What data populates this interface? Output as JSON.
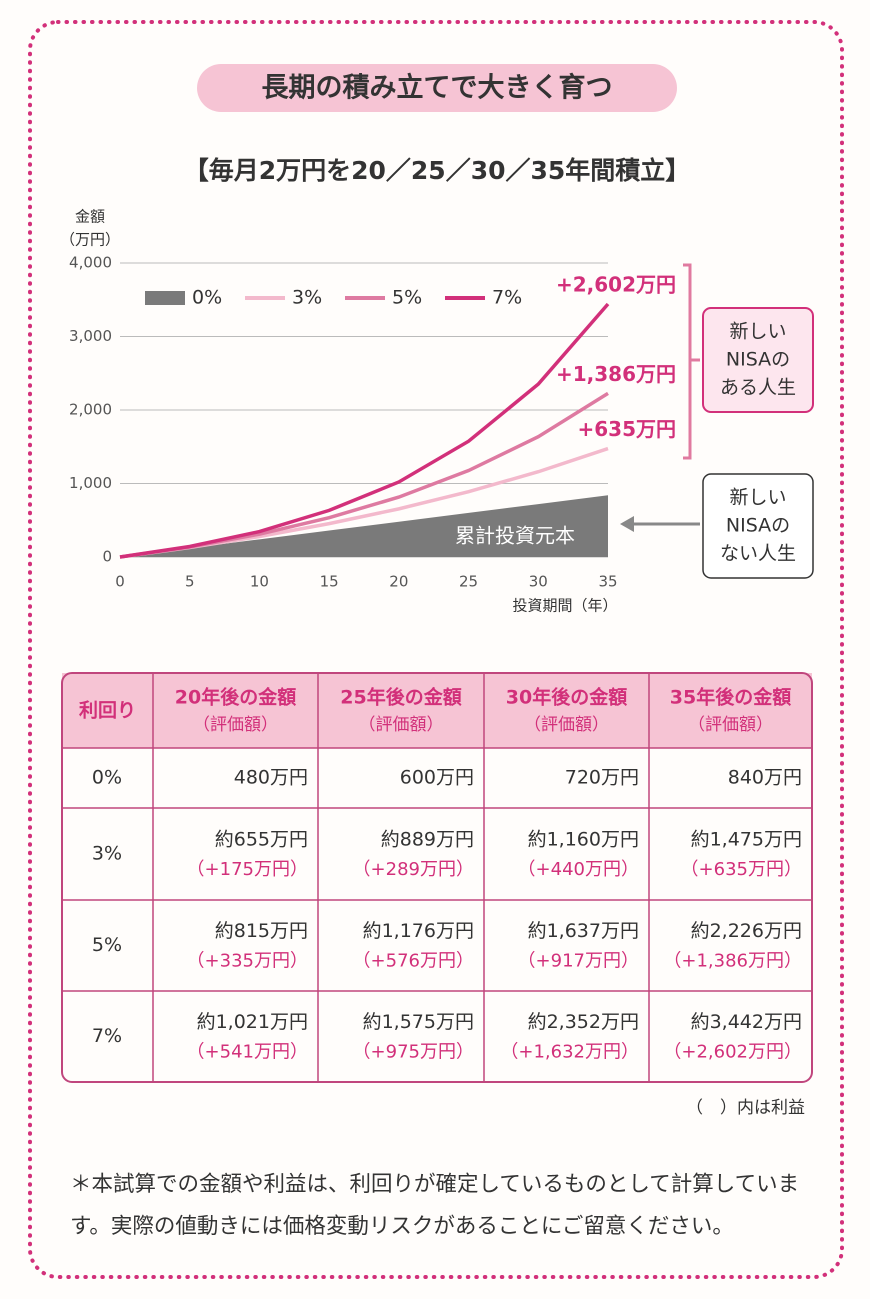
{
  "header": {
    "title": "長期の積み立てで大きく育つ"
  },
  "chart_data": {
    "type": "line",
    "title": "【毎月2万円を20／25／30／35年間積立】",
    "xlabel": "投資期間（年）",
    "ylabel": [
      "金額",
      "（万円）"
    ],
    "x": [
      0,
      5,
      10,
      15,
      20,
      25,
      30,
      35
    ],
    "xlim": [
      0,
      35
    ],
    "xticks": [
      0,
      5,
      10,
      15,
      20,
      25,
      30,
      35
    ],
    "ylim": [
      0,
      4000
    ],
    "yticks": [
      0,
      {
        "value": 1000,
        "label": "1,000"
      },
      {
        "value": 2000,
        "label": "2,000"
      },
      {
        "value": 3000,
        "label": "3,000"
      },
      {
        "value": 4000,
        "label": "4,000"
      }
    ],
    "grid": true,
    "legend": "top-left",
    "series": [
      {
        "name": "0%",
        "color": "#7a7a7a",
        "area": true,
        "values": [
          0,
          120,
          240,
          360,
          480,
          600,
          720,
          840
        ]
      },
      {
        "name": "3%",
        "color": "#f3b9cc",
        "values": [
          0,
          129,
          279,
          454,
          655,
          889,
          1160,
          1475
        ]
      },
      {
        "name": "5%",
        "color": "#de7aa1",
        "values": [
          0,
          136,
          311,
          535,
          815,
          1176,
          1637,
          2226
        ]
      },
      {
        "name": "7%",
        "color": "#d2307a",
        "values": [
          0,
          143,
          346,
          634,
          1021,
          1575,
          2352,
          3442
        ]
      }
    ],
    "area_label": "累計投資元本",
    "annotations": [
      "+635万円",
      "+1,386万円",
      "+2,602万円"
    ],
    "groups": [
      {
        "label": [
          "新しい",
          "NISAの",
          "ある人生"
        ]
      },
      {
        "label": [
          "新しい",
          "NISAの",
          "ない人生"
        ]
      }
    ]
  },
  "table": {
    "header": [
      "利回り",
      [
        "20年後の金額",
        "（評価額）"
      ],
      [
        "25年後の金額",
        "（評価額）"
      ],
      [
        "30年後の金額",
        "（評価額）"
      ],
      [
        "35年後の金額",
        "（評価額）"
      ]
    ],
    "rows": [
      {
        "rate": "0%",
        "cells": [
          [
            "480万円"
          ],
          [
            "600万円"
          ],
          [
            "720万円"
          ],
          [
            "840万円"
          ]
        ]
      },
      {
        "rate": "3%",
        "cells": [
          [
            "約655万円",
            "（+175万円）"
          ],
          [
            "約889万円",
            "（+289万円）"
          ],
          [
            "約1,160万円",
            "（+440万円）"
          ],
          [
            "約1,475万円",
            "（+635万円）"
          ]
        ]
      },
      {
        "rate": "5%",
        "cells": [
          [
            "約815万円",
            "（+335万円）"
          ],
          [
            "約1,176万円",
            "（+576万円）"
          ],
          [
            "約1,637万円",
            "（+917万円）"
          ],
          [
            "約2,226万円",
            "（+1,386万円）"
          ]
        ]
      },
      {
        "rate": "7%",
        "cells": [
          [
            "約1,021万円",
            "（+541万円）"
          ],
          [
            "約1,575万円",
            "（+975万円）"
          ],
          [
            "約2,352万円",
            "（+1,632万円）"
          ],
          [
            "約3,442万円",
            "（+2,602万円）"
          ]
        ]
      }
    ],
    "note": "（　）内は利益"
  },
  "footnote": "＊本試算での金額や利益は、利回りが確定しているものとして計算しています。実際の値動きには価格変動リスクがあることにご留意ください。"
}
